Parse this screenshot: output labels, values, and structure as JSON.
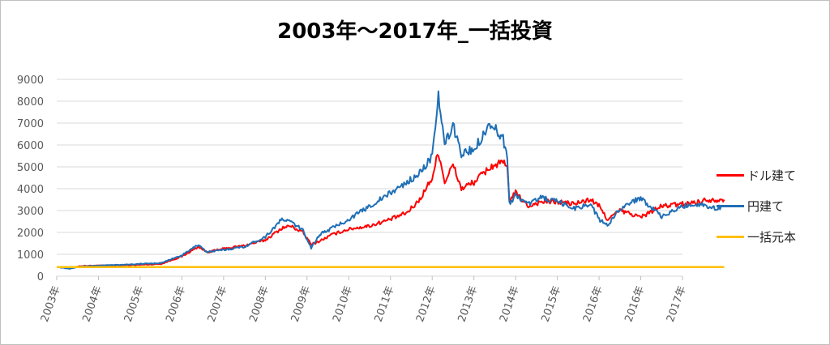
{
  "chart_data": {
    "type": "line",
    "title": "2003年～2017年_一括投資",
    "xlabel": "",
    "ylabel": "",
    "ylim": [
      0,
      9000
    ],
    "y_ticks": [
      0,
      1000,
      2000,
      3000,
      4000,
      5000,
      6000,
      7000,
      8000,
      9000
    ],
    "x_ticks": [
      "2003年",
      "2004年",
      "2005年",
      "2006年",
      "2007年",
      "2008年",
      "2009年",
      "2010年",
      "2011年",
      "2012年",
      "2013年",
      "2014年",
      "2015年",
      "2016年",
      "2016年",
      "2017年"
    ],
    "grid": true,
    "legend_position": "right",
    "series": [
      {
        "name": "ドル建て",
        "color": "#ff0000",
        "points": [
          [
            0,
            420
          ],
          [
            0.3,
            380
          ],
          [
            0.6,
            470
          ],
          [
            1,
            480
          ],
          [
            1.5,
            500
          ],
          [
            2,
            520
          ],
          [
            2.5,
            560
          ],
          [
            3,
            900
          ],
          [
            3.4,
            1350
          ],
          [
            3.6,
            1100
          ],
          [
            4,
            1250
          ],
          [
            4.5,
            1400
          ],
          [
            5,
            1650
          ],
          [
            5.4,
            2200
          ],
          [
            5.6,
            2300
          ],
          [
            5.9,
            2000
          ],
          [
            6.1,
            1450
          ],
          [
            6.3,
            1600
          ],
          [
            6.6,
            1900
          ],
          [
            7,
            2150
          ],
          [
            7.5,
            2300
          ],
          [
            8,
            2600
          ],
          [
            8.4,
            2900
          ],
          [
            8.7,
            3500
          ],
          [
            9,
            4500
          ],
          [
            9.15,
            5700
          ],
          [
            9.3,
            4300
          ],
          [
            9.5,
            5100
          ],
          [
            9.7,
            4000
          ],
          [
            10,
            4300
          ],
          [
            10.4,
            5000
          ],
          [
            10.7,
            5200
          ],
          [
            10.8,
            4900
          ],
          [
            10.85,
            3500
          ],
          [
            11,
            3800
          ],
          [
            11.3,
            3200
          ],
          [
            11.6,
            3400
          ],
          [
            12,
            3400
          ],
          [
            12.4,
            3300
          ],
          [
            12.8,
            3500
          ],
          [
            13,
            3200
          ],
          [
            13.2,
            2600
          ],
          [
            13.5,
            3000
          ],
          [
            14,
            2700
          ],
          [
            14.5,
            3200
          ],
          [
            15,
            3300
          ],
          [
            15.4,
            3400
          ],
          [
            15.6,
            3500
          ],
          [
            15.8,
            3500
          ],
          [
            16,
            3500
          ]
        ]
      },
      {
        "name": "円建て",
        "color": "#1f6fb5",
        "points": [
          [
            0,
            420
          ],
          [
            0.3,
            350
          ],
          [
            0.6,
            450
          ],
          [
            1,
            480
          ],
          [
            1.5,
            520
          ],
          [
            2,
            560
          ],
          [
            2.5,
            600
          ],
          [
            3,
            950
          ],
          [
            3.4,
            1450
          ],
          [
            3.6,
            1100
          ],
          [
            4,
            1200
          ],
          [
            4.5,
            1350
          ],
          [
            5,
            1800
          ],
          [
            5.4,
            2600
          ],
          [
            5.6,
            2500
          ],
          [
            5.9,
            2100
          ],
          [
            6.1,
            1300
          ],
          [
            6.3,
            1900
          ],
          [
            6.6,
            2200
          ],
          [
            7,
            2600
          ],
          [
            7.5,
            3200
          ],
          [
            8,
            3800
          ],
          [
            8.4,
            4300
          ],
          [
            8.7,
            4700
          ],
          [
            9,
            5500
          ],
          [
            9.1,
            7000
          ],
          [
            9.15,
            8250
          ],
          [
            9.3,
            6000
          ],
          [
            9.5,
            6900
          ],
          [
            9.7,
            5600
          ],
          [
            10,
            5800
          ],
          [
            10.4,
            7000
          ],
          [
            10.7,
            6300
          ],
          [
            10.8,
            5400
          ],
          [
            10.85,
            3300
          ],
          [
            11,
            3700
          ],
          [
            11.3,
            3300
          ],
          [
            11.6,
            3600
          ],
          [
            12,
            3400
          ],
          [
            12.4,
            3100
          ],
          [
            12.8,
            3300
          ],
          [
            13,
            2600
          ],
          [
            13.2,
            2300
          ],
          [
            13.5,
            3100
          ],
          [
            14,
            3600
          ],
          [
            14.5,
            2700
          ],
          [
            15,
            3200
          ],
          [
            15.4,
            3300
          ],
          [
            15.6,
            3200
          ],
          [
            15.8,
            3100
          ],
          [
            16,
            3200
          ]
        ]
      },
      {
        "name": "一括元本",
        "color": "#ffc000",
        "points": [
          [
            0,
            420
          ],
          [
            16,
            420
          ]
        ]
      }
    ]
  }
}
